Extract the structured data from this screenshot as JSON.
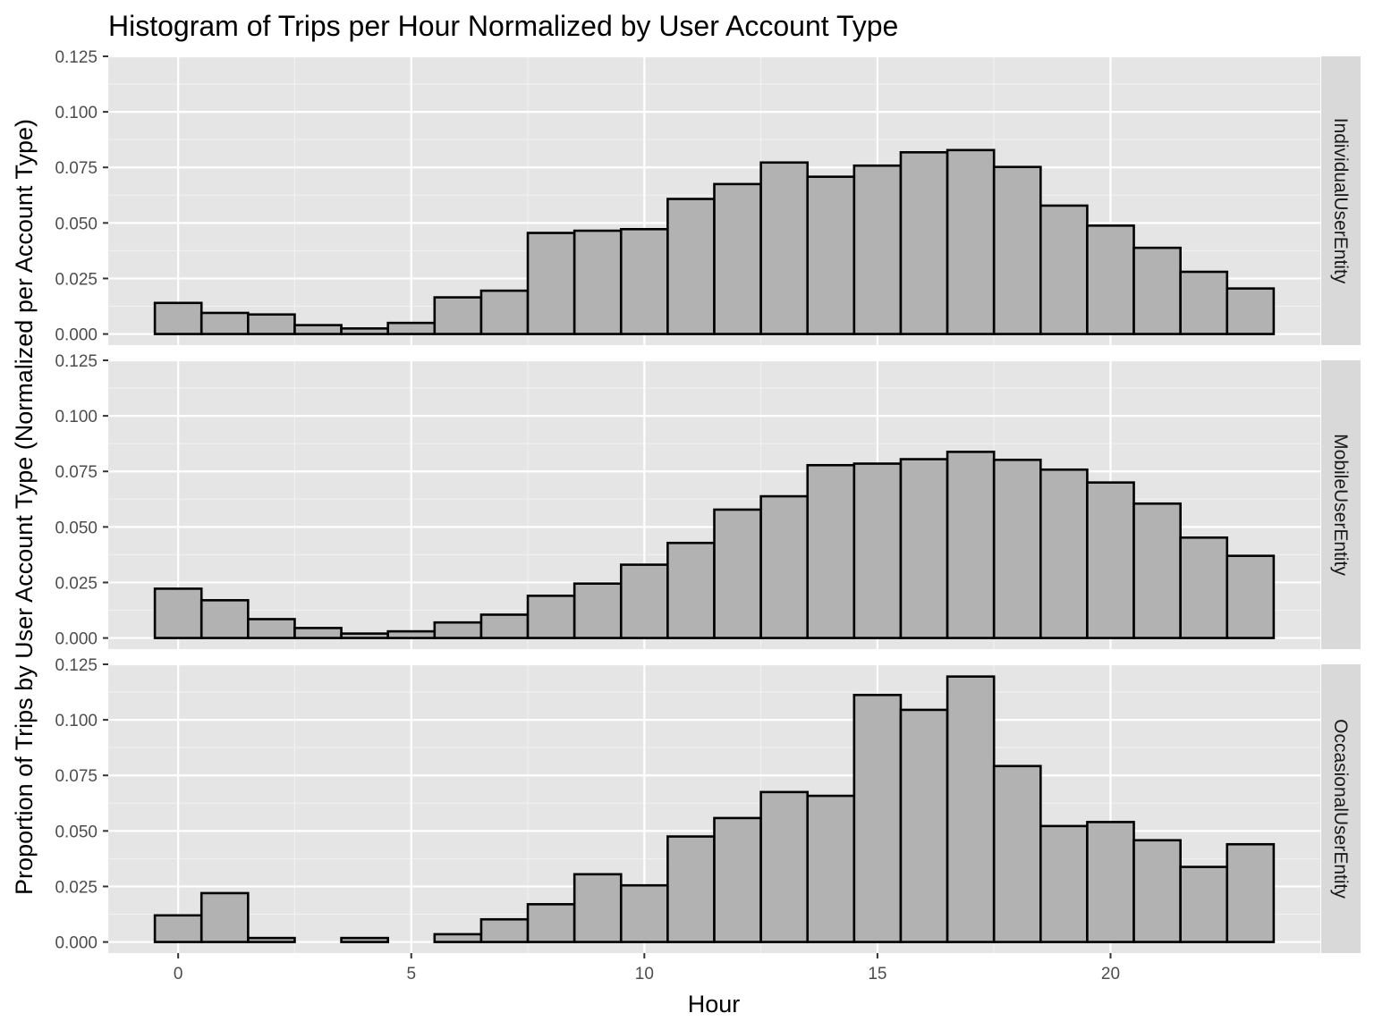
{
  "chart_data": {
    "type": "bar",
    "title": "Histogram of Trips per Hour Normalized by User Account Type",
    "xlabel": "Hour",
    "ylabel": "Proportion of Trips by User Account Type (Normalized per Account Type)",
    "xlim": [
      -1.5,
      24.5
    ],
    "ylim": [
      -0.005,
      0.125
    ],
    "x_ticks": [
      0,
      5,
      10,
      15,
      20
    ],
    "y_ticks": [
      0.0,
      0.025,
      0.05,
      0.075,
      0.1,
      0.125
    ],
    "x_tick_labels": [
      "0",
      "5",
      "10",
      "15",
      "20"
    ],
    "y_tick_labels": [
      "0.000",
      "0.025",
      "0.050",
      "0.075",
      "0.100",
      "0.125"
    ],
    "categories": [
      0,
      1,
      2,
      3,
      4,
      5,
      6,
      7,
      8,
      9,
      10,
      11,
      12,
      13,
      14,
      15,
      16,
      17,
      18,
      19,
      20,
      21,
      22,
      23
    ],
    "grid": true,
    "bar_fill": "#b2b2b2",
    "bar_stroke": "#000000",
    "panel_bg": "#e5e5e5",
    "strip_bg": "#d9d9d9",
    "series": [
      {
        "name": "IndividualUserEntity",
        "values": [
          0.014,
          0.0095,
          0.0088,
          0.004,
          0.0025,
          0.005,
          0.0165,
          0.0195,
          0.0455,
          0.0465,
          0.0472,
          0.0608,
          0.0675,
          0.0772,
          0.0708,
          0.0758,
          0.0818,
          0.0828,
          0.0752,
          0.0578,
          0.0488,
          0.0388,
          0.028,
          0.0205
        ]
      },
      {
        "name": "MobileUserEntity",
        "values": [
          0.0222,
          0.017,
          0.0085,
          0.0045,
          0.002,
          0.003,
          0.007,
          0.0105,
          0.019,
          0.0245,
          0.033,
          0.0428,
          0.0578,
          0.0638,
          0.0778,
          0.0785,
          0.0805,
          0.0838,
          0.0802,
          0.0758,
          0.07,
          0.0605,
          0.0452,
          0.037
        ]
      },
      {
        "name": "OccasionalUserEntity",
        "values": [
          0.012,
          0.022,
          0.0018,
          0.0,
          0.0018,
          0.0,
          0.0035,
          0.0102,
          0.017,
          0.0305,
          0.0255,
          0.0475,
          0.0558,
          0.0675,
          0.0658,
          0.1112,
          0.1045,
          0.1195,
          0.0792,
          0.0522,
          0.054,
          0.0458,
          0.0338,
          0.044
        ]
      }
    ]
  }
}
